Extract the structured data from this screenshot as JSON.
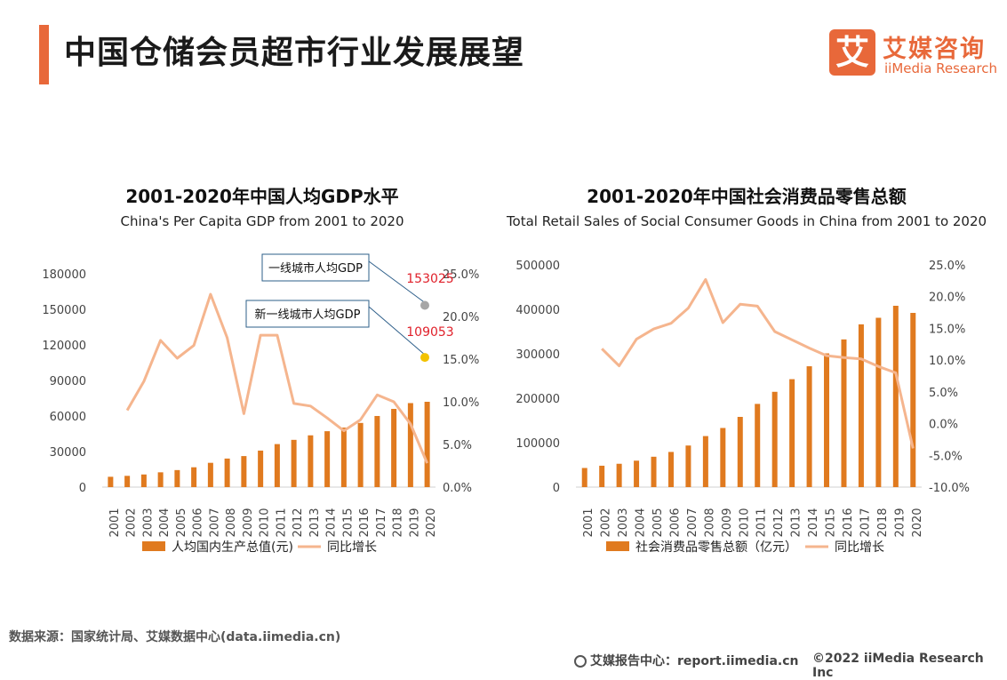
{
  "header": {
    "title": "中国仓储会员超市行业发展展望"
  },
  "logo": {
    "mark": "艾",
    "cn": "艾媒咨询",
    "en": "iiMedia Research"
  },
  "source_text": "数据来源：国家统计局、艾媒数据中心(data.iimedia.cn)",
  "footer": {
    "report": "艾媒报告中心：report.iimedia.cn",
    "copyright": "©2022  iiMedia Research  Inc"
  },
  "colors": {
    "bar": "#e07a1f",
    "line": "#f5b58e",
    "accent": "#e8683a"
  },
  "chart_data": [
    {
      "type": "bar",
      "title": "2001-2020年中国人均GDP水平",
      "subtitle": "China's Per Capita GDP from 2001 to 2020",
      "categories": [
        "2001",
        "2002",
        "2003",
        "2004",
        "2005",
        "2006",
        "2007",
        "2008",
        "2009",
        "2010",
        "2011",
        "2012",
        "2013",
        "2014",
        "2015",
        "2016",
        "2017",
        "2018",
        "2019",
        "2020"
      ],
      "series": [
        {
          "name": "人均国内生产总值(元)",
          "kind": "bar",
          "axis": "left",
          "values": [
            8717,
            9506,
            10666,
            12487,
            14368,
            16738,
            20494,
            24100,
            26180,
            30808,
            36302,
            39874,
            43684,
            47173,
            50237,
            54139,
            60014,
            66006,
            70892,
            72000
          ]
        },
        {
          "name": "同比增长",
          "kind": "line",
          "axis": "right",
          "values": [
            null,
            9.0,
            12.4,
            17.2,
            15.1,
            16.6,
            22.6,
            17.5,
            8.6,
            17.8,
            17.8,
            9.8,
            9.5,
            8.1,
            6.6,
            7.9,
            10.8,
            10.0,
            7.4,
            2.8
          ]
        }
      ],
      "ylim": [
        0,
        180000
      ],
      "yticks": [
        "0",
        "30000",
        "60000",
        "90000",
        "120000",
        "150000",
        "180000"
      ],
      "y2lim": [
        0,
        25
      ],
      "y2ticks": [
        "0.0%",
        "5.0%",
        "10.0%",
        "15.0%",
        "20.0%",
        "25.0%"
      ],
      "annotations": [
        {
          "label": "一线城市人均GDP",
          "value": "153025",
          "y2": 21.3,
          "color": "#a6a6a6"
        },
        {
          "label": "新一线城市人均GDP",
          "value": "109053",
          "y2": 15.2,
          "color": "#f2c200"
        }
      ]
    },
    {
      "type": "bar",
      "title": "2001-2020年中国社会消费品零售总额",
      "subtitle": "Total Retail Sales of Social Consumer Goods in China from 2001 to 2020",
      "categories": [
        "2001",
        "2002",
        "2003",
        "2004",
        "2005",
        "2006",
        "2007",
        "2008",
        "2009",
        "2010",
        "2011",
        "2012",
        "2013",
        "2014",
        "2015",
        "2016",
        "2017",
        "2018",
        "2019",
        "2020"
      ],
      "series": [
        {
          "name": "社会消费品零售总额（亿元）",
          "kind": "bar",
          "axis": "left",
          "values": [
            43055,
            48136,
            52516,
            59501,
            68353,
            79145,
            93572,
            114830,
            133048,
            158008,
            187206,
            214433,
            242843,
            271896,
            300931,
            332316,
            366262,
            380987,
            408017,
            391981
          ]
        },
        {
          "name": "同比增长",
          "kind": "line",
          "axis": "right",
          "values": [
            null,
            11.8,
            9.1,
            13.3,
            14.9,
            15.8,
            18.2,
            22.7,
            15.9,
            18.8,
            18.5,
            14.5,
            13.2,
            11.9,
            10.7,
            10.4,
            10.2,
            9.0,
            8.0,
            -3.9
          ]
        }
      ],
      "ylim": [
        0,
        500000
      ],
      "yticks": [
        "0",
        "100000",
        "200000",
        "300000",
        "400000",
        "500000"
      ],
      "y2lim": [
        -10,
        25
      ],
      "y2ticks": [
        "-10.0%",
        "-5.0%",
        "0.0%",
        "5.0%",
        "10.0%",
        "15.0%",
        "20.0%",
        "25.0%"
      ]
    }
  ]
}
